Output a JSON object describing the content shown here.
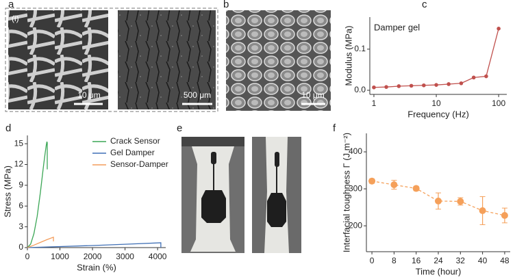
{
  "figure": {
    "a": {
      "label": "a",
      "inset": "(i)",
      "scale_bars": [
        "10 μm",
        "500 μm"
      ]
    },
    "b": {
      "label": "b",
      "scale_bar": "10 μm"
    },
    "e": {
      "label": "e"
    }
  },
  "chart_data": [
    {
      "type": "line",
      "label": "c",
      "annotation": "Damper gel",
      "xlabel": "Frequency (Hz)",
      "ylabel": "Modulus (MPa)",
      "log_x": true,
      "xlim": [
        0.86,
        135
      ],
      "ylim": [
        -0.01,
        0.178
      ],
      "xticks": [
        1,
        10,
        100
      ],
      "yticks": [
        {
          "value": 0,
          "label": "0.0"
        },
        {
          "value": 0.1,
          "label": "0.1"
        }
      ],
      "marker": true,
      "dashed": false,
      "series": [
        {
          "name": "Damper gel",
          "color": "#c0504d",
          "x": [
            1,
            1.58,
            2.51,
            3.98,
            6.31,
            10,
            15.8,
            25.1,
            39.8,
            63.1,
            100
          ],
          "values": [
            0.007,
            0.008,
            0.01,
            0.011,
            0.012,
            0.013,
            0.015,
            0.017,
            0.031,
            0.034,
            0.15
          ]
        }
      ]
    },
    {
      "type": "line",
      "label": "d",
      "xlabel": "Strain (%)",
      "ylabel": "Stress (MPa)",
      "log_x": false,
      "xlim": [
        0,
        4250
      ],
      "ylim": [
        0,
        16.2
      ],
      "xticks": [
        0,
        1000,
        2000,
        3000,
        4000
      ],
      "yticks": [
        0,
        3,
        6,
        9,
        12,
        15
      ],
      "marker": false,
      "dashed": false,
      "legend": "upper center",
      "series": [
        {
          "name": "Crack Sensor",
          "color": "#3aa655",
          "x": [
            0,
            100,
            200,
            300,
            400,
            500,
            550,
            580,
            600,
            610,
            610
          ],
          "values": [
            0,
            0.5,
            2,
            4.5,
            8,
            12,
            13.8,
            14.8,
            15.3,
            15.1,
            11.3
          ]
        },
        {
          "name": "Gel Damper",
          "color": "#3f6fb5",
          "x": [
            0,
            1000,
            2000,
            3000,
            4100,
            4100
          ],
          "values": [
            0,
            0.15,
            0.3,
            0.48,
            0.7,
            0
          ]
        },
        {
          "name": "Sensor-Damper",
          "color": "#f39c5a",
          "x": [
            0,
            200,
            400,
            600,
            800,
            800
          ],
          "values": [
            0,
            0.35,
            0.75,
            1.15,
            1.5,
            0.9
          ]
        }
      ]
    },
    {
      "type": "line",
      "label": "f",
      "xlabel": "Time (hour)",
      "ylabel": "Interfacial toughness Γ (J m⁻²)",
      "log_x": false,
      "xlim": [
        -2,
        50
      ],
      "ylim": [
        130,
        450
      ],
      "xticks": [
        0,
        8,
        16,
        24,
        32,
        40,
        48
      ],
      "yticks": [
        200,
        300,
        400
      ],
      "marker": true,
      "dashed": true,
      "series": [
        {
          "name": "Interfacial toughness",
          "color": "#f5a05a",
          "x": [
            0,
            8,
            16,
            24,
            32,
            40,
            48
          ],
          "values": [
            321,
            311,
            301,
            267,
            266,
            241,
            228
          ],
          "errors": [
            6,
            12,
            6,
            22,
            10,
            38,
            20
          ]
        }
      ]
    }
  ]
}
